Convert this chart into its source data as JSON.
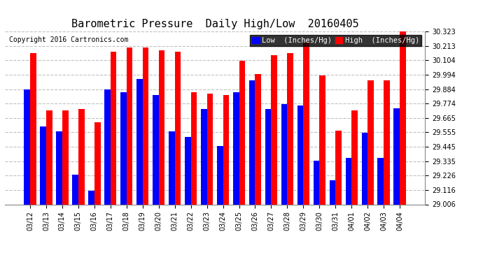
{
  "title": "Barometric Pressure  Daily High/Low  20160405",
  "copyright": "Copyright 2016 Cartronics.com",
  "dates": [
    "03/12",
    "03/13",
    "03/14",
    "03/15",
    "03/16",
    "03/17",
    "03/18",
    "03/19",
    "03/20",
    "03/21",
    "03/22",
    "03/23",
    "03/24",
    "03/25",
    "03/26",
    "03/27",
    "03/28",
    "03/29",
    "03/30",
    "03/31",
    "04/01",
    "04/02",
    "04/03",
    "04/04"
  ],
  "low": [
    29.88,
    29.6,
    29.56,
    29.23,
    29.11,
    29.88,
    29.86,
    29.96,
    29.84,
    29.56,
    29.52,
    29.73,
    29.45,
    29.86,
    29.95,
    29.73,
    29.77,
    29.76,
    29.34,
    29.19,
    29.36,
    29.55,
    29.36,
    29.74
  ],
  "high": [
    30.16,
    29.72,
    29.72,
    29.73,
    29.63,
    30.17,
    30.2,
    30.2,
    30.18,
    30.17,
    29.86,
    29.85,
    29.84,
    30.1,
    30.0,
    30.14,
    30.16,
    30.24,
    29.99,
    29.57,
    29.72,
    29.95,
    29.95,
    30.33
  ],
  "ylim_low": 29.006,
  "ylim_high": 30.323,
  "yticks": [
    29.006,
    29.116,
    29.226,
    29.335,
    29.445,
    29.555,
    29.665,
    29.774,
    29.884,
    29.994,
    30.104,
    30.213,
    30.323
  ],
  "bar_width": 0.38,
  "low_color": "#0000ff",
  "high_color": "#ff0000",
  "bg_color": "#ffffff",
  "grid_color": "#c0c0c0",
  "title_fontsize": 11,
  "tick_fontsize": 7,
  "legend_fontsize": 7.5,
  "copyright_fontsize": 7
}
